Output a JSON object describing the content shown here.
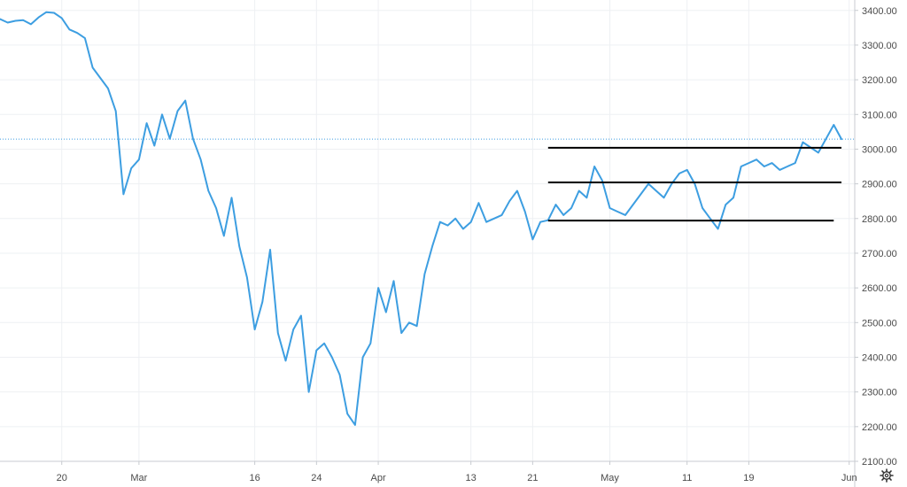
{
  "chart_data": {
    "type": "line",
    "title": "",
    "xlabel": "",
    "ylabel": "",
    "x_range": [
      "2020-02-12",
      "2020-05-31"
    ],
    "ylim": [
      2100,
      3430
    ],
    "grid": true,
    "y_ticks": [
      "3400.00",
      "3300.00",
      "3200.00",
      "3100.00",
      "3000.00",
      "2900.00",
      "2800.00",
      "2700.00",
      "2600.00",
      "2500.00",
      "2400.00",
      "2300.00",
      "2200.00",
      "2100.00"
    ],
    "x_ticks": [
      {
        "label": "20",
        "date": "2020-02-20"
      },
      {
        "label": "Mar",
        "date": "2020-03-01"
      },
      {
        "label": "16",
        "date": "2020-03-16"
      },
      {
        "label": "24",
        "date": "2020-03-24"
      },
      {
        "label": "Apr",
        "date": "2020-04-01"
      },
      {
        "label": "13",
        "date": "2020-04-13"
      },
      {
        "label": "21",
        "date": "2020-04-21"
      },
      {
        "label": "May",
        "date": "2020-05-01"
      },
      {
        "label": "11",
        "date": "2020-05-11"
      },
      {
        "label": "19",
        "date": "2020-05-19"
      },
      {
        "label": "Jun",
        "date": "2020-06-01"
      }
    ],
    "price_line": 3029,
    "series": [
      {
        "color": "#3d9ee1",
        "points": [
          [
            "2020-02-12",
            3375
          ],
          [
            "2020-02-13",
            3365
          ],
          [
            "2020-02-14",
            3370
          ],
          [
            "2020-02-15",
            3372
          ],
          [
            "2020-02-16",
            3360
          ],
          [
            "2020-02-17",
            3380
          ],
          [
            "2020-02-18",
            3395
          ],
          [
            "2020-02-19",
            3393
          ],
          [
            "2020-02-20",
            3378
          ],
          [
            "2020-02-21",
            3345
          ],
          [
            "2020-02-22",
            3335
          ],
          [
            "2020-02-23",
            3320
          ],
          [
            "2020-02-24",
            3235
          ],
          [
            "2020-02-25",
            3205
          ],
          [
            "2020-02-26",
            3175
          ],
          [
            "2020-02-27",
            3110
          ],
          [
            "2020-02-28",
            2870
          ],
          [
            "2020-02-29",
            2945
          ],
          [
            "2020-03-01",
            2970
          ],
          [
            "2020-03-02",
            3075
          ],
          [
            "2020-03-03",
            3010
          ],
          [
            "2020-03-04",
            3100
          ],
          [
            "2020-03-05",
            3030
          ],
          [
            "2020-03-06",
            3110
          ],
          [
            "2020-03-07",
            3140
          ],
          [
            "2020-03-08",
            3030
          ],
          [
            "2020-03-09",
            2970
          ],
          [
            "2020-03-10",
            2880
          ],
          [
            "2020-03-11",
            2830
          ],
          [
            "2020-03-12",
            2750
          ],
          [
            "2020-03-13",
            2860
          ],
          [
            "2020-03-14",
            2720
          ],
          [
            "2020-03-15",
            2630
          ],
          [
            "2020-03-16",
            2480
          ],
          [
            "2020-03-17",
            2560
          ],
          [
            "2020-03-18",
            2710
          ],
          [
            "2020-03-19",
            2470
          ],
          [
            "2020-03-20",
            2390
          ],
          [
            "2020-03-21",
            2480
          ],
          [
            "2020-03-22",
            2520
          ],
          [
            "2020-03-23",
            2300
          ],
          [
            "2020-03-24",
            2420
          ],
          [
            "2020-03-25",
            2440
          ],
          [
            "2020-03-26",
            2400
          ],
          [
            "2020-03-27",
            2350
          ],
          [
            "2020-03-28",
            2237
          ],
          [
            "2020-03-29",
            2205
          ],
          [
            "2020-03-30",
            2400
          ],
          [
            "2020-03-31",
            2440
          ],
          [
            "2020-04-01",
            2600
          ],
          [
            "2020-04-02",
            2530
          ],
          [
            "2020-04-03",
            2620
          ],
          [
            "2020-04-04",
            2470
          ],
          [
            "2020-04-05",
            2500
          ],
          [
            "2020-04-06",
            2490
          ],
          [
            "2020-04-07",
            2640
          ],
          [
            "2020-04-08",
            2720
          ],
          [
            "2020-04-09",
            2790
          ],
          [
            "2020-04-10",
            2780
          ],
          [
            "2020-04-11",
            2800
          ],
          [
            "2020-04-12",
            2770
          ],
          [
            "2020-04-13",
            2790
          ],
          [
            "2020-04-14",
            2845
          ],
          [
            "2020-04-15",
            2790
          ],
          [
            "2020-04-16",
            2800
          ],
          [
            "2020-04-17",
            2810
          ],
          [
            "2020-04-18",
            2850
          ],
          [
            "2020-04-19",
            2880
          ],
          [
            "2020-04-20",
            2820
          ],
          [
            "2020-04-21",
            2740
          ],
          [
            "2020-04-22",
            2790
          ],
          [
            "2020-04-23",
            2795
          ],
          [
            "2020-04-24",
            2840
          ],
          [
            "2020-04-25",
            2810
          ],
          [
            "2020-04-26",
            2830
          ],
          [
            "2020-04-27",
            2880
          ],
          [
            "2020-04-28",
            2860
          ],
          [
            "2020-04-29",
            2950
          ],
          [
            "2020-04-30",
            2910
          ],
          [
            "2020-05-01",
            2830
          ],
          [
            "2020-05-02",
            2820
          ],
          [
            "2020-05-03",
            2810
          ],
          [
            "2020-05-04",
            2840
          ],
          [
            "2020-05-05",
            2870
          ],
          [
            "2020-05-06",
            2900
          ],
          [
            "2020-05-07",
            2880
          ],
          [
            "2020-05-08",
            2860
          ],
          [
            "2020-05-09",
            2900
          ],
          [
            "2020-05-10",
            2930
          ],
          [
            "2020-05-11",
            2940
          ],
          [
            "2020-05-12",
            2900
          ],
          [
            "2020-05-13",
            2830
          ],
          [
            "2020-05-14",
            2800
          ],
          [
            "2020-05-15",
            2770
          ],
          [
            "2020-05-16",
            2840
          ],
          [
            "2020-05-17",
            2860
          ],
          [
            "2020-05-18",
            2950
          ],
          [
            "2020-05-19",
            2960
          ],
          [
            "2020-05-20",
            2970
          ],
          [
            "2020-05-21",
            2950
          ],
          [
            "2020-05-22",
            2960
          ],
          [
            "2020-05-23",
            2940
          ],
          [
            "2020-05-24",
            2950
          ],
          [
            "2020-05-25",
            2960
          ],
          [
            "2020-05-26",
            3020
          ],
          [
            "2020-05-27",
            3005
          ],
          [
            "2020-05-28",
            2990
          ],
          [
            "2020-05-29",
            3030
          ],
          [
            "2020-05-30",
            3070
          ],
          [
            "2020-05-31",
            3029
          ]
        ]
      }
    ],
    "annotations": [
      {
        "type": "horizontal-segment",
        "y": 3004,
        "from": "2020-04-23",
        "to": "2020-05-31"
      },
      {
        "type": "horizontal-segment",
        "y": 2904,
        "from": "2020-04-23",
        "to": "2020-05-31"
      },
      {
        "type": "horizontal-segment",
        "y": 2794,
        "from": "2020-04-23",
        "to": "2020-05-30"
      }
    ]
  },
  "toolbar": {
    "settings_icon": "gear-icon"
  }
}
